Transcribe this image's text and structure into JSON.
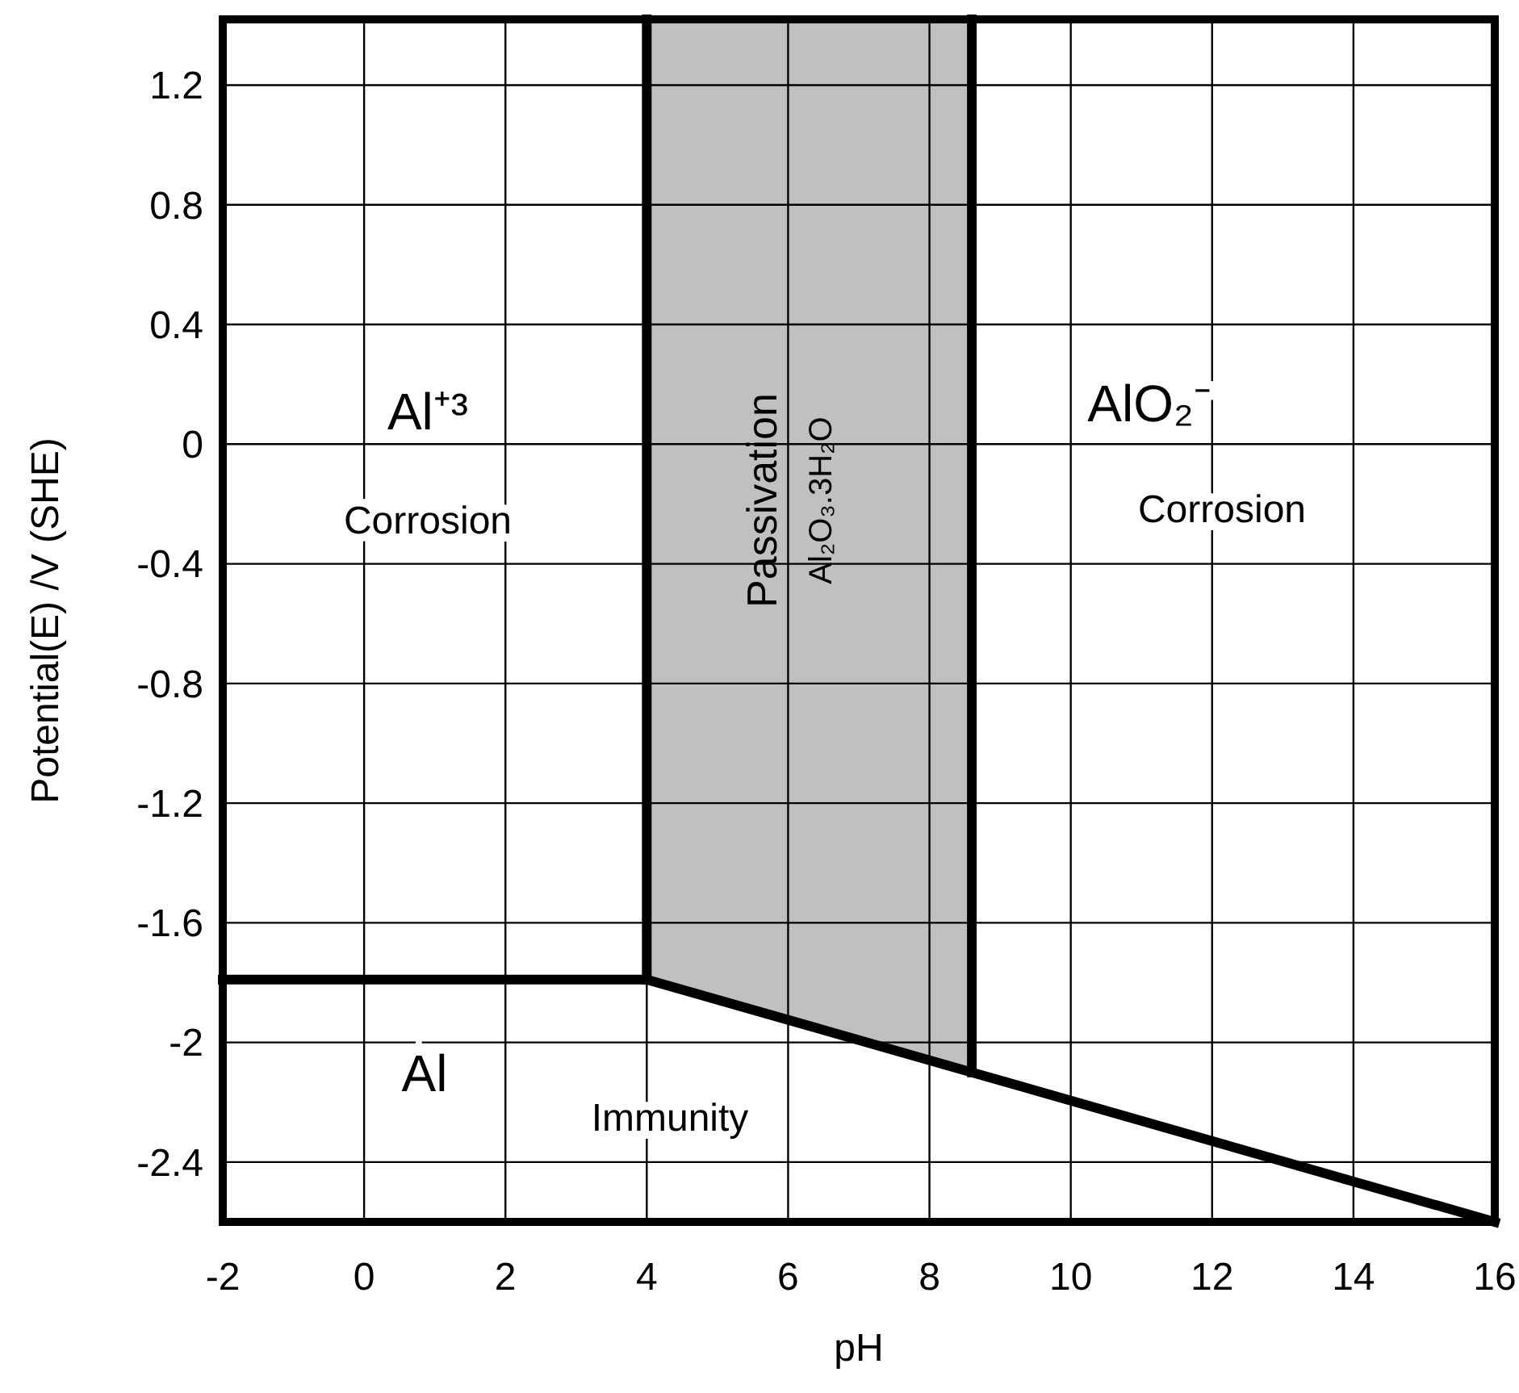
{
  "chart_data": {
    "type": "line",
    "xlabel": "pH",
    "ylabel": "Potential(E) /V (SHE)",
    "xlim": [
      -2,
      16
    ],
    "xticks": [
      -2,
      0,
      2,
      4,
      6,
      8,
      10,
      12,
      14,
      16
    ],
    "ylim": [
      -2.6,
      1.42
    ],
    "yticks": [
      1.2,
      0.8,
      0.4,
      0,
      -0.4,
      -0.8,
      -1.2,
      -1.6,
      -2.0,
      -2.4
    ],
    "grid": true,
    "marker": "none",
    "line_style": "solid",
    "series": [
      {
        "color": "#000000",
        "x": [
          -2,
          4,
          8.6,
          16
        ],
        "values": [
          -1.79,
          -1.79,
          -2.1,
          -2.6
        ],
        "lower": [
          null,
          -1.79,
          -2.1,
          null
        ],
        "upper": [
          null,
          1.42,
          1.42,
          null
        ]
      },
      {
        "color": "#000000",
        "x": [
          4,
          4
        ],
        "values": [
          -1.79,
          1.42
        ]
      },
      {
        "color": "#000000",
        "x": [
          8.6,
          8.6
        ],
        "values": [
          -2.1,
          1.42
        ]
      }
    ],
    "annotations": [
      "Al⁺³",
      "Corrosion",
      "Passivation",
      "Al₂O₃.3H₂O",
      "AlO₂⁻",
      "Corrosion",
      "Al",
      "Immunity"
    ]
  }
}
